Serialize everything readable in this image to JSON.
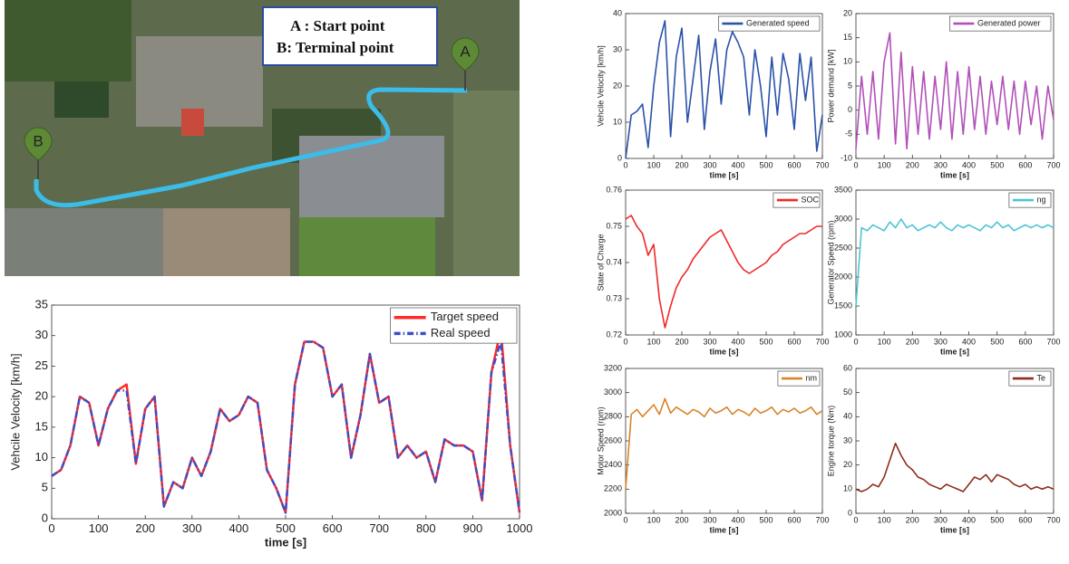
{
  "map": {
    "legend": [
      "A : Start point",
      "B: Terminal point"
    ],
    "markers": [
      "A",
      "B"
    ]
  },
  "chart_data": [
    {
      "type": "line",
      "xlabel": "time [s]",
      "ylabel": "Vehcile Velocity [km/h]",
      "xlim": [
        0,
        1000
      ],
      "ylim": [
        0,
        35
      ],
      "xticks": [
        0,
        100,
        200,
        300,
        400,
        500,
        600,
        700,
        800,
        900,
        1000
      ],
      "yticks": [
        0,
        5,
        10,
        15,
        20,
        25,
        30,
        35
      ],
      "legend": "upper right",
      "x": [
        0,
        20,
        40,
        60,
        80,
        100,
        120,
        140,
        160,
        180,
        200,
        220,
        240,
        260,
        280,
        300,
        320,
        340,
        360,
        380,
        400,
        420,
        440,
        460,
        480,
        500,
        520,
        540,
        560,
        580,
        600,
        620,
        640,
        660,
        680,
        700,
        720,
        740,
        760,
        780,
        800,
        820,
        840,
        860,
        880,
        900,
        920,
        940,
        960,
        980,
        1000
      ],
      "series": [
        {
          "name": "Target speed",
          "color": "#ff2a2a",
          "linestyle": "solid",
          "values": [
            7,
            8,
            12,
            20,
            19,
            12,
            18,
            21,
            22,
            9,
            18,
            20,
            2,
            6,
            5,
            10,
            7,
            11,
            18,
            16,
            17,
            20,
            19,
            8,
            5,
            1,
            22,
            29,
            29,
            28,
            20,
            22,
            10,
            17,
            27,
            19,
            20,
            10,
            12,
            10,
            11,
            6,
            13,
            12,
            12,
            11,
            3,
            24,
            31,
            12,
            1
          ]
        },
        {
          "name": "Real speed",
          "color": "#3a4ec8",
          "linestyle": "dashdot",
          "values": [
            7,
            8,
            12,
            20,
            19,
            12,
            18,
            21,
            21,
            9,
            18,
            20,
            2,
            6,
            5,
            10,
            7,
            11,
            18,
            16,
            17,
            20,
            19,
            8,
            5,
            1,
            22,
            29,
            29,
            28,
            20,
            22,
            10,
            17,
            27,
            19,
            20,
            10,
            12,
            10,
            11,
            6,
            13,
            12,
            12,
            11,
            3,
            24,
            29,
            12,
            1
          ]
        }
      ]
    },
    {
      "type": "line",
      "xlabel": "time [s]",
      "ylabel": "Vehcile Velocity [km/h]",
      "xlim": [
        0,
        700
      ],
      "ylim": [
        0,
        40
      ],
      "xticks": [
        0,
        100,
        200,
        300,
        400,
        500,
        600,
        700
      ],
      "yticks": [
        0,
        10,
        20,
        30,
        40
      ],
      "legend": "upper right",
      "x": [
        0,
        20,
        40,
        60,
        80,
        100,
        120,
        140,
        160,
        180,
        200,
        220,
        240,
        260,
        280,
        300,
        320,
        340,
        360,
        380,
        400,
        420,
        440,
        460,
        480,
        500,
        520,
        540,
        560,
        580,
        600,
        620,
        640,
        660,
        680,
        700
      ],
      "series": [
        {
          "name": "Generated speed",
          "color": "#2a52a8",
          "linestyle": "solid",
          "values": [
            0,
            12,
            13,
            15,
            3,
            20,
            32,
            38,
            6,
            28,
            36,
            10,
            22,
            34,
            8,
            24,
            33,
            15,
            30,
            35,
            32,
            28,
            12,
            30,
            20,
            6,
            28,
            12,
            29,
            22,
            8,
            29,
            16,
            28,
            2,
            12
          ]
        }
      ]
    },
    {
      "type": "line",
      "xlabel": "time [s]",
      "ylabel": "Power demand [kW]",
      "xlim": [
        0,
        700
      ],
      "ylim": [
        -10,
        20
      ],
      "xticks": [
        0,
        100,
        200,
        300,
        400,
        500,
        600,
        700
      ],
      "yticks": [
        -10,
        -5,
        0,
        5,
        10,
        15,
        20
      ],
      "legend": "upper right",
      "x": [
        0,
        20,
        40,
        60,
        80,
        100,
        120,
        140,
        160,
        180,
        200,
        220,
        240,
        260,
        280,
        300,
        320,
        340,
        360,
        380,
        400,
        420,
        440,
        460,
        480,
        500,
        520,
        540,
        560,
        580,
        600,
        620,
        640,
        660,
        680,
        700
      ],
      "series": [
        {
          "name": "Generated power",
          "color": "#b150b8",
          "linestyle": "solid",
          "values": [
            -8,
            7,
            -5,
            8,
            -6,
            10,
            16,
            -7,
            12,
            -8,
            9,
            -5,
            8,
            -6,
            7,
            -4,
            10,
            -6,
            8,
            -5,
            9,
            -4,
            7,
            -5,
            6,
            -3,
            7,
            -4,
            6,
            -5,
            6,
            -3,
            5,
            -6,
            5,
            -2
          ]
        }
      ]
    },
    {
      "type": "line",
      "xlabel": "time [s]",
      "ylabel": "State of Charge",
      "xlim": [
        0,
        700
      ],
      "ylim": [
        0.72,
        0.76
      ],
      "xticks": [
        0,
        100,
        200,
        300,
        400,
        500,
        600,
        700
      ],
      "yticks": [
        0.72,
        0.73,
        0.74,
        0.75,
        0.76
      ],
      "legend": "upper right",
      "x": [
        0,
        20,
        40,
        60,
        80,
        100,
        120,
        140,
        160,
        180,
        200,
        220,
        240,
        260,
        280,
        300,
        320,
        340,
        360,
        380,
        400,
        420,
        440,
        460,
        480,
        500,
        520,
        540,
        560,
        580,
        600,
        620,
        640,
        660,
        680,
        700
      ],
      "series": [
        {
          "name": "SOC",
          "color": "#ee2a2a",
          "linestyle": "solid",
          "values": [
            0.752,
            0.753,
            0.75,
            0.748,
            0.742,
            0.745,
            0.73,
            0.722,
            0.728,
            0.733,
            0.736,
            0.738,
            0.741,
            0.743,
            0.745,
            0.747,
            0.748,
            0.749,
            0.746,
            0.743,
            0.74,
            0.738,
            0.737,
            0.738,
            0.739,
            0.74,
            0.742,
            0.743,
            0.745,
            0.746,
            0.747,
            0.748,
            0.748,
            0.749,
            0.75,
            0.75
          ]
        }
      ]
    },
    {
      "type": "line",
      "xlabel": "time [s]",
      "ylabel": "Generator Speed (rpm)",
      "xlim": [
        0,
        700
      ],
      "ylim": [
        1000,
        3500
      ],
      "xticks": [
        0,
        100,
        200,
        300,
        400,
        500,
        600,
        700
      ],
      "yticks": [
        1000,
        1500,
        2000,
        2500,
        3000,
        3500
      ],
      "legend": "upper right",
      "x": [
        0,
        20,
        40,
        60,
        80,
        100,
        120,
        140,
        160,
        180,
        200,
        220,
        240,
        260,
        280,
        300,
        320,
        340,
        360,
        380,
        400,
        420,
        440,
        460,
        480,
        500,
        520,
        540,
        560,
        580,
        600,
        620,
        640,
        660,
        680,
        700
      ],
      "series": [
        {
          "name": "ng",
          "color": "#4ec4d4",
          "linestyle": "solid",
          "values": [
            1500,
            2850,
            2800,
            2900,
            2850,
            2800,
            2950,
            2850,
            3000,
            2850,
            2900,
            2800,
            2850,
            2900,
            2850,
            2950,
            2850,
            2800,
            2900,
            2850,
            2900,
            2850,
            2800,
            2900,
            2850,
            2950,
            2850,
            2900,
            2800,
            2850,
            2900,
            2850,
            2900,
            2850,
            2900,
            2850
          ]
        }
      ]
    },
    {
      "type": "line",
      "xlabel": "time [s]",
      "ylabel": "Motor Speed (rpm)",
      "xlim": [
        0,
        700
      ],
      "ylim": [
        2000,
        3200
      ],
      "xticks": [
        0,
        100,
        200,
        300,
        400,
        500,
        600,
        700
      ],
      "yticks": [
        2000,
        2200,
        2400,
        2600,
        2800,
        3000,
        3200
      ],
      "legend": "upper right",
      "x": [
        0,
        20,
        40,
        60,
        80,
        100,
        120,
        140,
        160,
        180,
        200,
        220,
        240,
        260,
        280,
        300,
        320,
        340,
        360,
        380,
        400,
        420,
        440,
        460,
        480,
        500,
        520,
        540,
        560,
        580,
        600,
        620,
        640,
        660,
        680,
        700
      ],
      "series": [
        {
          "name": "nm",
          "color": "#d8842a",
          "linestyle": "solid",
          "values": [
            2200,
            2820,
            2860,
            2800,
            2850,
            2900,
            2820,
            2950,
            2830,
            2880,
            2850,
            2820,
            2860,
            2840,
            2800,
            2870,
            2830,
            2850,
            2880,
            2820,
            2860,
            2840,
            2810,
            2870,
            2830,
            2850,
            2880,
            2820,
            2860,
            2840,
            2870,
            2830,
            2850,
            2880,
            2820,
            2850
          ]
        }
      ]
    },
    {
      "type": "line",
      "xlabel": "time [s]",
      "ylabel": "Engine torque (Nm)",
      "xlim": [
        0,
        700
      ],
      "ylim": [
        0,
        60
      ],
      "xticks": [
        0,
        100,
        200,
        300,
        400,
        500,
        600,
        700
      ],
      "yticks": [
        0,
        10,
        20,
        30,
        40,
        50,
        60
      ],
      "legend": "upper right",
      "x": [
        0,
        20,
        40,
        60,
        80,
        100,
        120,
        140,
        160,
        180,
        200,
        220,
        240,
        260,
        280,
        300,
        320,
        340,
        360,
        380,
        400,
        420,
        440,
        460,
        480,
        500,
        520,
        540,
        560,
        580,
        600,
        620,
        640,
        660,
        680,
        700
      ],
      "series": [
        {
          "name": "Te",
          "color": "#8e2e1c",
          "linestyle": "solid",
          "values": [
            10,
            9,
            10,
            12,
            11,
            15,
            22,
            29,
            24,
            20,
            18,
            15,
            14,
            12,
            11,
            10,
            12,
            11,
            10,
            9,
            12,
            15,
            14,
            16,
            13,
            16,
            15,
            14,
            12,
            11,
            12,
            10,
            11,
            10,
            11,
            10
          ]
        }
      ]
    }
  ]
}
